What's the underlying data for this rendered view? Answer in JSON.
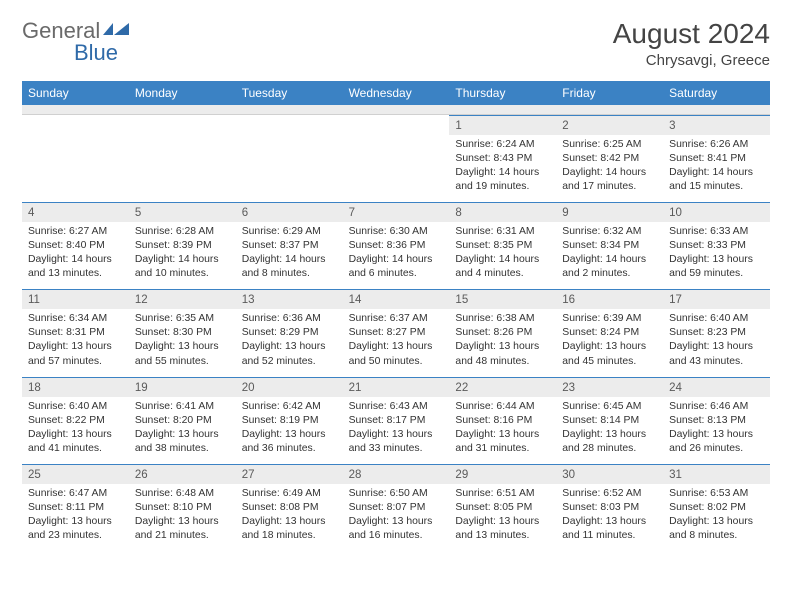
{
  "brand": {
    "part1": "General",
    "part2": "Blue"
  },
  "title": "August 2024",
  "location": "Chrysavgi, Greece",
  "colors": {
    "header_bar": "#3b82c4",
    "grey_band": "#ececec",
    "text": "#333333",
    "logo_grey": "#6a6a6a",
    "logo_blue": "#2f6aa8"
  },
  "weekdays": [
    "Sunday",
    "Monday",
    "Tuesday",
    "Wednesday",
    "Thursday",
    "Friday",
    "Saturday"
  ],
  "weeks": [
    [
      null,
      null,
      null,
      null,
      {
        "n": "1",
        "sr": "Sunrise: 6:24 AM",
        "ss": "Sunset: 8:43 PM",
        "d1": "Daylight: 14 hours",
        "d2": "and 19 minutes."
      },
      {
        "n": "2",
        "sr": "Sunrise: 6:25 AM",
        "ss": "Sunset: 8:42 PM",
        "d1": "Daylight: 14 hours",
        "d2": "and 17 minutes."
      },
      {
        "n": "3",
        "sr": "Sunrise: 6:26 AM",
        "ss": "Sunset: 8:41 PM",
        "d1": "Daylight: 14 hours",
        "d2": "and 15 minutes."
      }
    ],
    [
      {
        "n": "4",
        "sr": "Sunrise: 6:27 AM",
        "ss": "Sunset: 8:40 PM",
        "d1": "Daylight: 14 hours",
        "d2": "and 13 minutes."
      },
      {
        "n": "5",
        "sr": "Sunrise: 6:28 AM",
        "ss": "Sunset: 8:39 PM",
        "d1": "Daylight: 14 hours",
        "d2": "and 10 minutes."
      },
      {
        "n": "6",
        "sr": "Sunrise: 6:29 AM",
        "ss": "Sunset: 8:37 PM",
        "d1": "Daylight: 14 hours",
        "d2": "and 8 minutes."
      },
      {
        "n": "7",
        "sr": "Sunrise: 6:30 AM",
        "ss": "Sunset: 8:36 PM",
        "d1": "Daylight: 14 hours",
        "d2": "and 6 minutes."
      },
      {
        "n": "8",
        "sr": "Sunrise: 6:31 AM",
        "ss": "Sunset: 8:35 PM",
        "d1": "Daylight: 14 hours",
        "d2": "and 4 minutes."
      },
      {
        "n": "9",
        "sr": "Sunrise: 6:32 AM",
        "ss": "Sunset: 8:34 PM",
        "d1": "Daylight: 14 hours",
        "d2": "and 2 minutes."
      },
      {
        "n": "10",
        "sr": "Sunrise: 6:33 AM",
        "ss": "Sunset: 8:33 PM",
        "d1": "Daylight: 13 hours",
        "d2": "and 59 minutes."
      }
    ],
    [
      {
        "n": "11",
        "sr": "Sunrise: 6:34 AM",
        "ss": "Sunset: 8:31 PM",
        "d1": "Daylight: 13 hours",
        "d2": "and 57 minutes."
      },
      {
        "n": "12",
        "sr": "Sunrise: 6:35 AM",
        "ss": "Sunset: 8:30 PM",
        "d1": "Daylight: 13 hours",
        "d2": "and 55 minutes."
      },
      {
        "n": "13",
        "sr": "Sunrise: 6:36 AM",
        "ss": "Sunset: 8:29 PM",
        "d1": "Daylight: 13 hours",
        "d2": "and 52 minutes."
      },
      {
        "n": "14",
        "sr": "Sunrise: 6:37 AM",
        "ss": "Sunset: 8:27 PM",
        "d1": "Daylight: 13 hours",
        "d2": "and 50 minutes."
      },
      {
        "n": "15",
        "sr": "Sunrise: 6:38 AM",
        "ss": "Sunset: 8:26 PM",
        "d1": "Daylight: 13 hours",
        "d2": "and 48 minutes."
      },
      {
        "n": "16",
        "sr": "Sunrise: 6:39 AM",
        "ss": "Sunset: 8:24 PM",
        "d1": "Daylight: 13 hours",
        "d2": "and 45 minutes."
      },
      {
        "n": "17",
        "sr": "Sunrise: 6:40 AM",
        "ss": "Sunset: 8:23 PM",
        "d1": "Daylight: 13 hours",
        "d2": "and 43 minutes."
      }
    ],
    [
      {
        "n": "18",
        "sr": "Sunrise: 6:40 AM",
        "ss": "Sunset: 8:22 PM",
        "d1": "Daylight: 13 hours",
        "d2": "and 41 minutes."
      },
      {
        "n": "19",
        "sr": "Sunrise: 6:41 AM",
        "ss": "Sunset: 8:20 PM",
        "d1": "Daylight: 13 hours",
        "d2": "and 38 minutes."
      },
      {
        "n": "20",
        "sr": "Sunrise: 6:42 AM",
        "ss": "Sunset: 8:19 PM",
        "d1": "Daylight: 13 hours",
        "d2": "and 36 minutes."
      },
      {
        "n": "21",
        "sr": "Sunrise: 6:43 AM",
        "ss": "Sunset: 8:17 PM",
        "d1": "Daylight: 13 hours",
        "d2": "and 33 minutes."
      },
      {
        "n": "22",
        "sr": "Sunrise: 6:44 AM",
        "ss": "Sunset: 8:16 PM",
        "d1": "Daylight: 13 hours",
        "d2": "and 31 minutes."
      },
      {
        "n": "23",
        "sr": "Sunrise: 6:45 AM",
        "ss": "Sunset: 8:14 PM",
        "d1": "Daylight: 13 hours",
        "d2": "and 28 minutes."
      },
      {
        "n": "24",
        "sr": "Sunrise: 6:46 AM",
        "ss": "Sunset: 8:13 PM",
        "d1": "Daylight: 13 hours",
        "d2": "and 26 minutes."
      }
    ],
    [
      {
        "n": "25",
        "sr": "Sunrise: 6:47 AM",
        "ss": "Sunset: 8:11 PM",
        "d1": "Daylight: 13 hours",
        "d2": "and 23 minutes."
      },
      {
        "n": "26",
        "sr": "Sunrise: 6:48 AM",
        "ss": "Sunset: 8:10 PM",
        "d1": "Daylight: 13 hours",
        "d2": "and 21 minutes."
      },
      {
        "n": "27",
        "sr": "Sunrise: 6:49 AM",
        "ss": "Sunset: 8:08 PM",
        "d1": "Daylight: 13 hours",
        "d2": "and 18 minutes."
      },
      {
        "n": "28",
        "sr": "Sunrise: 6:50 AM",
        "ss": "Sunset: 8:07 PM",
        "d1": "Daylight: 13 hours",
        "d2": "and 16 minutes."
      },
      {
        "n": "29",
        "sr": "Sunrise: 6:51 AM",
        "ss": "Sunset: 8:05 PM",
        "d1": "Daylight: 13 hours",
        "d2": "and 13 minutes."
      },
      {
        "n": "30",
        "sr": "Sunrise: 6:52 AM",
        "ss": "Sunset: 8:03 PM",
        "d1": "Daylight: 13 hours",
        "d2": "and 11 minutes."
      },
      {
        "n": "31",
        "sr": "Sunrise: 6:53 AM",
        "ss": "Sunset: 8:02 PM",
        "d1": "Daylight: 13 hours",
        "d2": "and 8 minutes."
      }
    ]
  ]
}
